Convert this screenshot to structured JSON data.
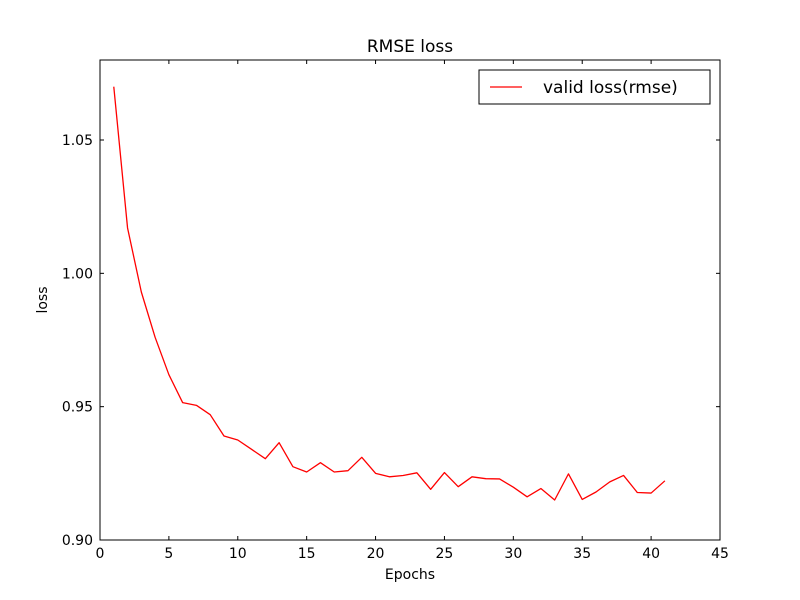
{
  "chart_data": {
    "type": "line",
    "title": "RMSE loss",
    "xlabel": "Epochs",
    "ylabel": "loss",
    "xlim": [
      0,
      45
    ],
    "ylim": [
      0.9,
      1.08
    ],
    "xticks": [
      0,
      5,
      10,
      15,
      20,
      25,
      30,
      35,
      40,
      45
    ],
    "xtick_labels": [
      "0",
      "5",
      "10",
      "15",
      "20",
      "25",
      "30",
      "35",
      "40",
      "45"
    ],
    "yticks": [
      0.9,
      0.95,
      1.0,
      1.05
    ],
    "ytick_labels": [
      "0.90",
      "0.95",
      "1.00",
      "1.05"
    ],
    "grid": false,
    "legend_position": "top-right",
    "series": [
      {
        "name": "valid loss(rmse)",
        "color": "#ff0000",
        "x": [
          1,
          2,
          3,
          4,
          5,
          6,
          7,
          8,
          9,
          10,
          11,
          12,
          13,
          14,
          15,
          16,
          17,
          18,
          19,
          20,
          21,
          22,
          23,
          24,
          25,
          26,
          27,
          28,
          29,
          30,
          31,
          32,
          33,
          34,
          35,
          36,
          37,
          38,
          39,
          40,
          41
        ],
        "y": [
          1.07,
          1.017,
          0.993,
          0.976,
          0.962,
          0.9515,
          0.9505,
          0.947,
          0.939,
          0.9375,
          0.934,
          0.9305,
          0.9365,
          0.9275,
          0.9255,
          0.929,
          0.9255,
          0.926,
          0.931,
          0.925,
          0.9237,
          0.9242,
          0.9252,
          0.919,
          0.9253,
          0.92,
          0.9237,
          0.923,
          0.9229,
          0.9198,
          0.9162,
          0.9193,
          0.915,
          0.9248,
          0.9152,
          0.918,
          0.9218,
          0.9242,
          0.9178,
          0.9176,
          0.9222
        ]
      }
    ]
  }
}
